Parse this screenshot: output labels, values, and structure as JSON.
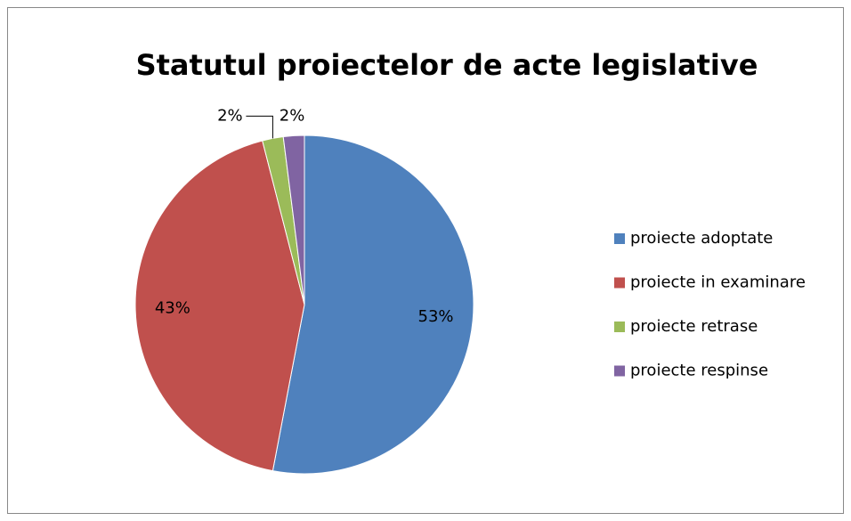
{
  "chart_data": {
    "type": "pie",
    "title": "Statutul proiectelor de acte legislative",
    "categories": [
      "proiecte adoptate",
      "proiecte in examinare",
      "proiecte retrase",
      "proiecte respinse"
    ],
    "values": [
      53,
      43,
      2,
      2
    ],
    "value_labels": [
      "53%",
      "43%",
      "2%",
      "2%"
    ],
    "colors": [
      "#4f81bd",
      "#c0504d",
      "#9bbb59",
      "#8064a2"
    ],
    "legend": "right"
  }
}
